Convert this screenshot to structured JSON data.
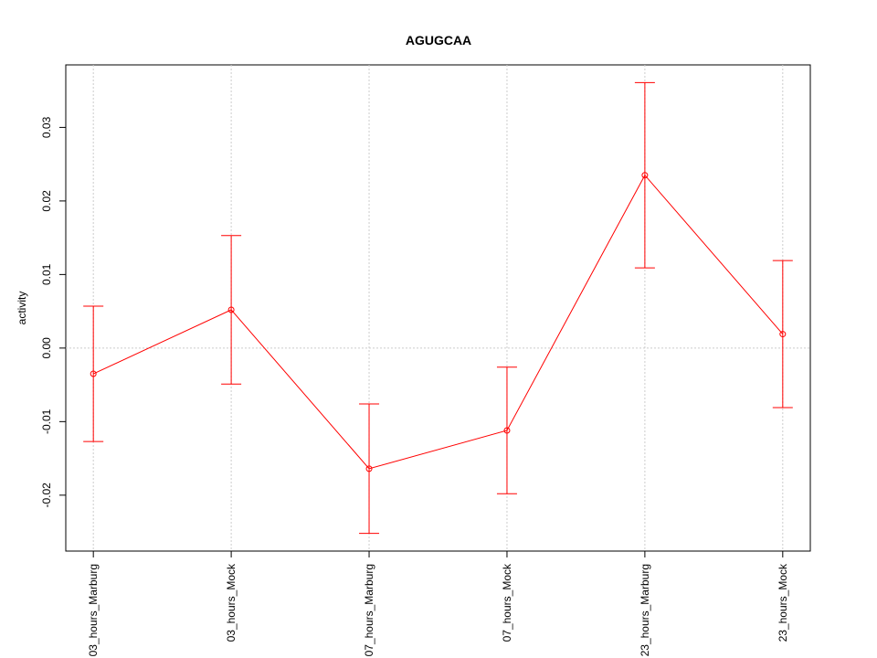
{
  "chart_data": {
    "type": "line",
    "title": "AGUGCAA",
    "y_label": "activity",
    "categories": [
      "03_hours_Marburg",
      "03_hours_Mock",
      "07_hours_Marburg",
      "07_hours_Mock",
      "23_hours_Marburg",
      "23_hours_Mock"
    ],
    "series": [
      {
        "color": "#ff0000",
        "values": [
          -0.0035,
          0.0052,
          -0.0164,
          -0.0112,
          0.0235,
          0.0019
        ],
        "errors": [
          0.0092,
          0.0101,
          0.0088,
          0.0086,
          0.0126,
          0.01
        ]
      }
    ],
    "ylim": [
      -0.0276,
      0.0385
    ],
    "yticks": [
      {
        "value": -0.02,
        "label": "-0.02"
      },
      {
        "value": -0.01,
        "label": "-0.01"
      },
      {
        "value": 0,
        "label": "0.00"
      },
      {
        "value": 0.01,
        "label": "0.01"
      },
      {
        "value": 0.02,
        "label": "0.02"
      },
      {
        "value": 0.03,
        "label": "0.03"
      }
    ],
    "reference_line": 0,
    "grid": true
  }
}
